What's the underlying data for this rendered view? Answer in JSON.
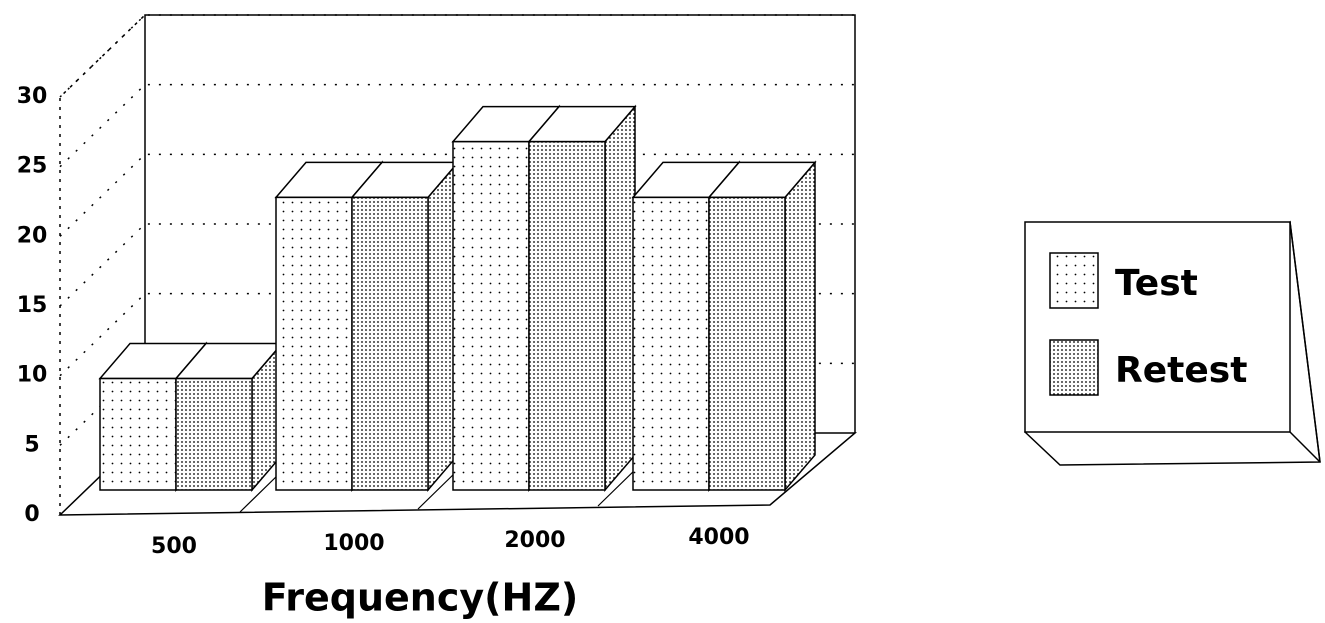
{
  "chart_data": {
    "type": "bar",
    "categories": [
      "500",
      "1000",
      "2000",
      "4000"
    ],
    "series": [
      {
        "name": "Test",
        "color": "#000000",
        "values": [
          8,
          21,
          25,
          21
        ]
      },
      {
        "name": "Retest",
        "color": "#000000",
        "values": [
          8,
          21,
          25,
          21
        ]
      }
    ],
    "x_label": "Frequency(HZ)",
    "ylim": [
      0,
      30
    ],
    "yticks": [
      0,
      5,
      10,
      15,
      20,
      25,
      30
    ],
    "grid": true,
    "legend": "right"
  }
}
